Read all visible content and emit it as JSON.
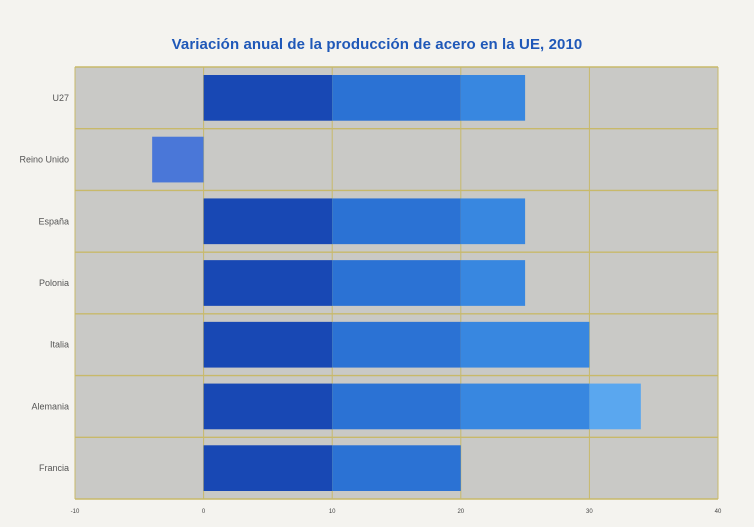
{
  "chart_data": {
    "type": "bar",
    "orientation": "horizontal",
    "title": "Variación anual de la producción de acero en la UE, 2010",
    "xlabel": "",
    "ylabel": "",
    "categories": [
      "U27",
      "Reino Unido",
      "España",
      "Polonia",
      "Italia",
      "Alemania",
      "Francia"
    ],
    "values": [
      25,
      -4,
      25,
      25,
      30,
      34,
      20
    ],
    "xlim": [
      -10,
      40
    ],
    "xticks": [
      "-10",
      "0",
      "10",
      "20",
      "30",
      "40"
    ],
    "grid": true,
    "legend": "none",
    "colors": {
      "plot_bg": "#c9c9c6",
      "grid": "#c8b96a",
      "band_1": "#1848b4",
      "band_2": "#2b72d4",
      "band_3": "#3887e0",
      "band_4": "#5aa7ef",
      "negative": "#4a77d8",
      "category_text": "#555555"
    }
  }
}
